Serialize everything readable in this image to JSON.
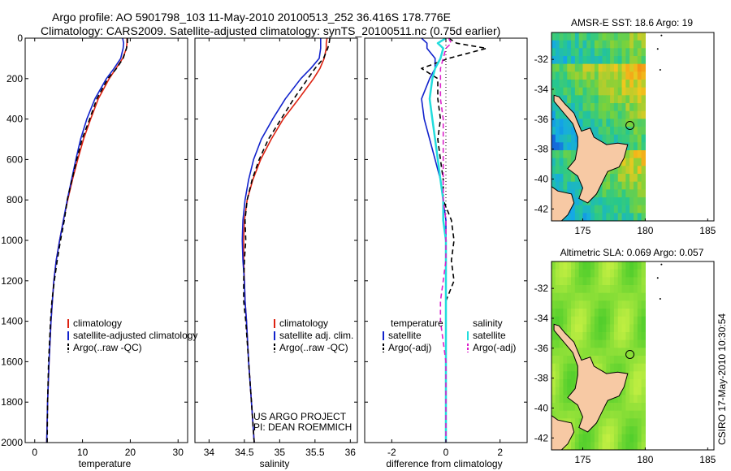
{
  "title": {
    "line1": "Argo profile: AO 5901798_103 11-May-2010 20100513_252 36.416S 178.776E",
    "line2": "Climatology: CARS2009. Satellite-adjusted climatology: synTS_20100511.nc (0.75d earlier)"
  },
  "credit": {
    "project": "US ARGO PROJECT",
    "pi": "PI: DEAN ROEMMICH",
    "stamp": "CSIRO 17-May-2010 10:30:54"
  },
  "colors": {
    "climatology": "#dd2211",
    "satellite": "#1122cc",
    "argo": "#000000",
    "salinity_satellite": "#22dddd",
    "salinity_argo": "#dd22cc",
    "land": "#f7c9a4"
  },
  "chart_data": [
    {
      "type": "line",
      "xlabel": "temperature",
      "xlim": [
        -2,
        32
      ],
      "xticks": [
        "0",
        "10",
        "20",
        "30"
      ],
      "ylim": [
        2000,
        0
      ],
      "yticks": [
        "0",
        "200",
        "400",
        "600",
        "800",
        "1000",
        "1200",
        "1400",
        "1600",
        "1800",
        "2000"
      ],
      "legend": [
        "climatology",
        "satellite-adjusted climatology",
        "Argo(..raw -QC)"
      ],
      "depth": [
        0,
        25,
        50,
        100,
        150,
        200,
        300,
        400,
        500,
        600,
        700,
        800,
        900,
        1000,
        1100,
        1200,
        1300,
        1400,
        1600,
        1800,
        2000
      ],
      "series": [
        {
          "name": "climatology",
          "style": "solid",
          "values": [
            19.3,
            19.3,
            19.2,
            18.4,
            17.0,
            15.6,
            13.3,
            11.7,
            10.2,
            9.0,
            7.9,
            6.9,
            6.0,
            5.2,
            4.5,
            4.0,
            3.7,
            3.4,
            3.0,
            2.7,
            2.5
          ]
        },
        {
          "name": "satellite-adjusted climatology",
          "style": "solid",
          "values": [
            18.4,
            18.6,
            18.5,
            18.0,
            16.6,
            15.0,
            12.6,
            10.9,
            9.6,
            8.6,
            7.7,
            6.8,
            6.0,
            5.2,
            4.5,
            4.0,
            3.7,
            3.4,
            3.0,
            2.7,
            2.5
          ]
        },
        {
          "name": "Argo(..raw -QC)",
          "style": "dashed",
          "values": [
            19.4,
            19.4,
            19.2,
            18.5,
            17.1,
            15.3,
            13.0,
            11.5,
            9.9,
            8.8,
            7.8,
            6.8,
            6.2,
            5.4,
            4.7,
            4.1,
            3.6,
            3.3,
            2.9,
            2.7,
            2.6
          ]
        }
      ]
    },
    {
      "type": "line",
      "xlabel": "salinity",
      "xlim": [
        33.8,
        36.1
      ],
      "xticks": [
        "34",
        "34.5",
        "35",
        "35.5",
        "36"
      ],
      "ylim": [
        2000,
        0
      ],
      "legend": [
        "climatology",
        "satellite adj. clim.",
        "Argo(..raw -QC)"
      ],
      "depth": [
        0,
        25,
        50,
        100,
        150,
        200,
        300,
        400,
        500,
        600,
        700,
        800,
        900,
        1000,
        1100,
        1200,
        1300,
        1400,
        1600,
        1800,
        2000
      ],
      "series": [
        {
          "name": "climatology",
          "style": "solid",
          "values": [
            35.67,
            35.66,
            35.66,
            35.63,
            35.57,
            35.48,
            35.27,
            35.05,
            34.88,
            34.73,
            34.62,
            34.54,
            34.5,
            34.49,
            34.49,
            34.5,
            34.51,
            34.53,
            34.56,
            34.6,
            34.64
          ]
        },
        {
          "name": "satellite adj. clim.",
          "style": "solid",
          "values": [
            35.58,
            35.58,
            35.58,
            35.56,
            35.44,
            35.3,
            35.08,
            34.9,
            34.74,
            34.63,
            34.56,
            34.51,
            34.48,
            34.47,
            34.48,
            34.5,
            34.51,
            34.53,
            34.56,
            34.6,
            34.64
          ]
        },
        {
          "name": "Argo(..raw -QC)",
          "style": "dashed",
          "values": [
            35.71,
            35.7,
            35.68,
            35.62,
            35.5,
            35.4,
            35.2,
            35.02,
            34.84,
            34.71,
            34.61,
            34.54,
            34.51,
            34.52,
            34.5,
            34.49,
            34.49,
            34.52,
            34.56,
            34.6,
            34.64
          ]
        }
      ]
    },
    {
      "type": "line",
      "xlabel": "difference from climatology",
      "xlim": [
        -3,
        3
      ],
      "xticks": [
        "-2",
        "0",
        "2"
      ],
      "ylim": [
        2000,
        0
      ],
      "legend_groups": [
        {
          "heading": "temperature",
          "entries": [
            "satellite",
            "Argo(-adj)"
          ]
        },
        {
          "heading": "salinity",
          "entries": [
            "satellite",
            "Argo(-adj)"
          ]
        }
      ],
      "depth": [
        0,
        25,
        50,
        100,
        150,
        200,
        300,
        400,
        500,
        600,
        700,
        800,
        900,
        1000,
        1100,
        1200,
        1300,
        1400,
        1600,
        1800,
        2000
      ],
      "series": [
        {
          "name": "temperature satellite",
          "group": "temperature",
          "style": "solid",
          "values": [
            -0.9,
            -0.7,
            -0.7,
            -0.4,
            -0.4,
            -0.6,
            -0.9,
            -0.8,
            -0.6,
            -0.4,
            -0.2,
            -0.1,
            0.0,
            0.0,
            0.0,
            0.0,
            0.0,
            0.0,
            0.0,
            0.0,
            0.0
          ]
        },
        {
          "name": "temperature Argo(-adj)",
          "group": "temperature",
          "style": "dashed",
          "values": [
            0.1,
            0.4,
            1.5,
            0.1,
            -0.9,
            -0.3,
            -0.3,
            -0.2,
            -0.3,
            -0.2,
            -0.1,
            -0.1,
            0.2,
            0.3,
            0.2,
            0.3,
            0.0,
            0.0,
            0.0,
            0.0,
            0.0
          ]
        },
        {
          "name": "salinity satellite",
          "group": "salinity",
          "style": "solid",
          "values": [
            0.0,
            -0.3,
            -0.1,
            -0.2,
            -0.4,
            -0.5,
            -0.6,
            -0.5,
            -0.4,
            -0.3,
            -0.2,
            -0.1,
            -0.1,
            0.0,
            0.0,
            0.0,
            0.0,
            0.0,
            0.0,
            0.0,
            0.0
          ]
        },
        {
          "name": "salinity Argo(-adj)",
          "group": "salinity",
          "style": "dashed",
          "values": [
            0.1,
            0.2,
            0.0,
            -0.1,
            -0.2,
            -0.2,
            -0.2,
            -0.1,
            -0.1,
            -0.1,
            -0.1,
            -0.1,
            0.0,
            0.0,
            0.0,
            -0.1,
            -0.2,
            -0.2,
            0.0,
            0.0,
            0.0
          ]
        }
      ]
    },
    {
      "type": "heatmap",
      "title": "AMSR-E SST: 18.6 Argo: 19",
      "xlim": [
        172.5,
        185.5
      ],
      "xticks": [
        "175",
        "180",
        "185"
      ],
      "ylim": [
        -42.8,
        -30.2
      ],
      "yticks": [
        "-32",
        "-34",
        "-36",
        "-38",
        "-40",
        "-42"
      ],
      "argo_position": [
        178.776,
        -36.416
      ]
    },
    {
      "type": "heatmap",
      "title": "Altimetric SLA: 0.069 Argo: 0.057",
      "xlim": [
        172.5,
        185.5
      ],
      "xticks": [
        "175",
        "180",
        "185"
      ],
      "ylim": [
        -42.8,
        -30.2
      ],
      "yticks": [
        "-32",
        "-34",
        "-36",
        "-38",
        "-40",
        "-42"
      ],
      "argo_position": [
        178.776,
        -36.416
      ]
    }
  ]
}
